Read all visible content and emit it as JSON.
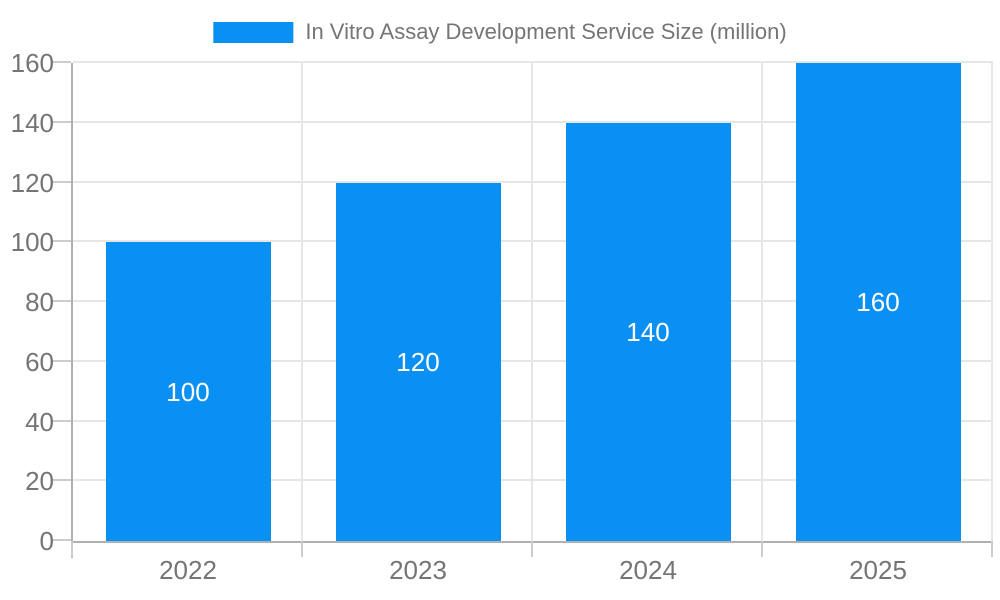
{
  "chart_data": {
    "type": "bar",
    "title": "",
    "legend": {
      "label": "In Vitro Assay Development Service Size (million)",
      "position": "top"
    },
    "categories": [
      "2022",
      "2023",
      "2024",
      "2025"
    ],
    "series": [
      {
        "name": "In Vitro Assay Development Service Size (million)",
        "values": [
          100,
          120,
          140,
          160
        ]
      }
    ],
    "data_labels": [
      "100",
      "120",
      "140",
      "160"
    ],
    "xlabel": "",
    "ylabel": "",
    "ylim": [
      0,
      160
    ],
    "yticks": [
      0,
      20,
      40,
      60,
      80,
      100,
      120,
      140,
      160
    ],
    "grid": true
  },
  "colors": {
    "bar_fill": "#0A90F2",
    "axis_text": "#757575",
    "data_label_text": "#ffffff",
    "gridline": "#e6e6e6",
    "axis_line": "#b0b0b0",
    "tick": "#cccccc",
    "background": "#ffffff"
  }
}
